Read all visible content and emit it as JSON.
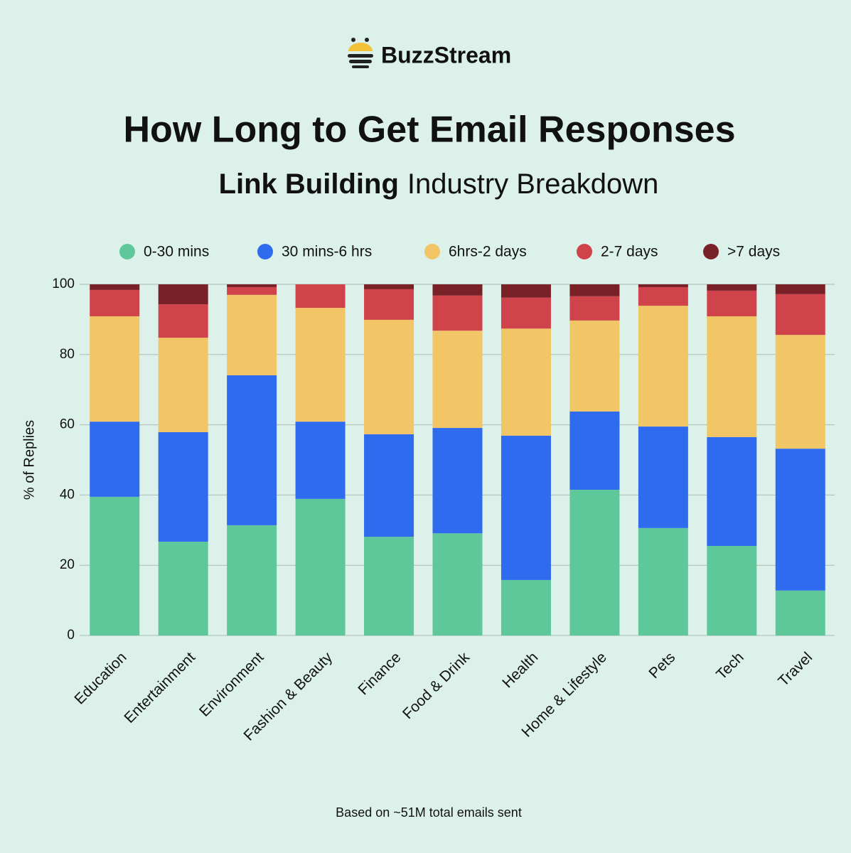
{
  "brand": "BuzzStream",
  "chart_data": {
    "type": "stacked-bar",
    "title": "How Long to Get Email Responses",
    "subtitle_emphasis": "Link Building",
    "subtitle": "Industry Breakdown",
    "y_label": "% of Replies",
    "footnote": "Based on ~51M total emails sent",
    "categories": [
      "Education",
      "Entertainment",
      "Environment",
      "Fashion & Beauty",
      "Finance",
      "Food & Drink",
      "Health",
      "Home & Lifestyle",
      "Pets",
      "Tech",
      "Travel"
    ],
    "series": [
      {
        "name": "0-30 mins",
        "color": "#5ec89a",
        "values": [
          39.5,
          26.7,
          31.4,
          38.9,
          28.1,
          29.1,
          15.8,
          41.5,
          30.6,
          25.5,
          12.8
        ]
      },
      {
        "name": "30 mins-6 hrs",
        "color": "#2f6bef",
        "values": [
          21.4,
          31.2,
          42.7,
          22.0,
          29.2,
          30.0,
          41.1,
          22.3,
          28.9,
          31.0,
          40.4
        ]
      },
      {
        "name": "6hrs-2 days",
        "color": "#f2c566",
        "values": [
          30.0,
          26.9,
          22.9,
          32.4,
          32.6,
          27.7,
          30.5,
          25.9,
          34.4,
          34.4,
          32.4
        ]
      },
      {
        "name": "2-7 days",
        "color": "#d0434a",
        "values": [
          7.5,
          9.5,
          2.2,
          6.7,
          8.7,
          10.0,
          8.8,
          6.9,
          5.3,
          7.3,
          11.6
        ]
      },
      {
        "name": ">7 days",
        "color": "#7a2128",
        "values": [
          1.6,
          5.7,
          0.8,
          0.0,
          1.4,
          3.2,
          3.8,
          3.4,
          0.8,
          1.8,
          2.8
        ]
      }
    ],
    "ylim": [
      0,
      100
    ],
    "yticks": [
      0,
      20,
      40,
      60,
      80,
      100
    ],
    "grid": true,
    "legend": "top"
  }
}
